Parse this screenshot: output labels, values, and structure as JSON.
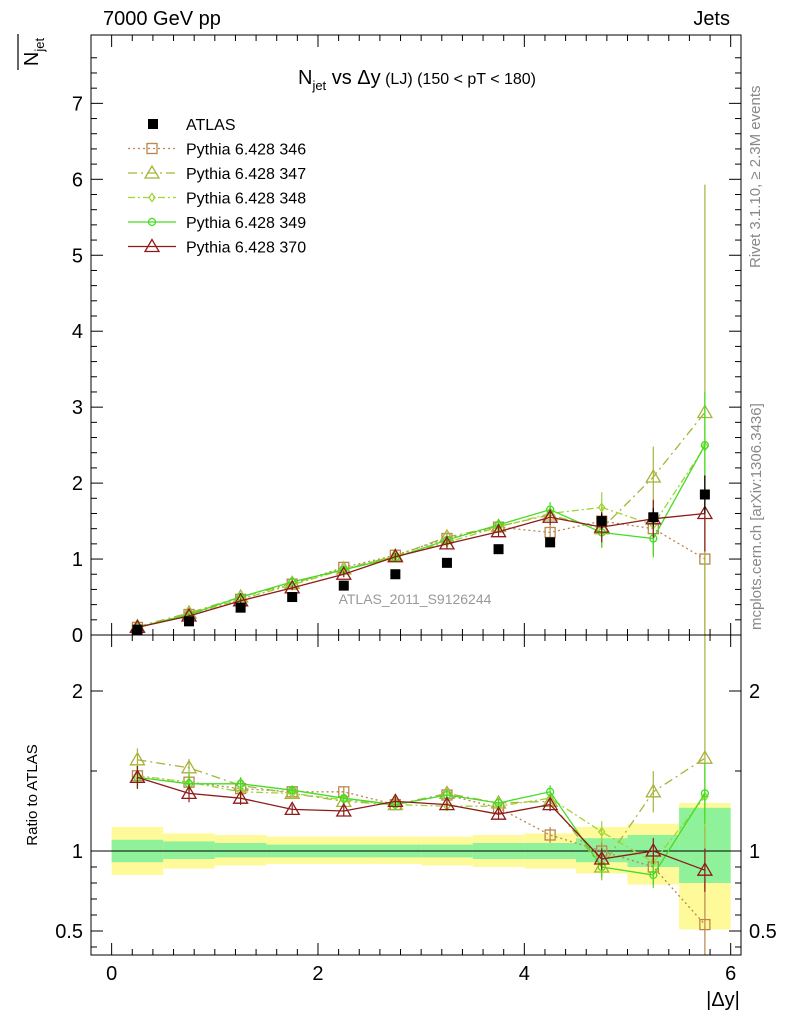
{
  "header": {
    "energy_label": "7000 GeV pp",
    "category_label": "Jets",
    "rivet_label": "Rivet 3.1.10, ≥ 2.3M events",
    "mcplots_label": "mcplots.cern.ch [arXiv:1306.3436]"
  },
  "chart_data": [
    {
      "type": "scatter",
      "title_main": "N",
      "title_sub": "jet",
      "title_rest": " vs Δy",
      "title_small": " (LJ)",
      "title_cut": " (150 < pT < 180)",
      "ylabel_main": "N",
      "ylabel_sub": "jet",
      "watermark": "ATLAS_2011_S9126244",
      "xlim": [
        -0.2,
        6.1
      ],
      "ylim": [
        0,
        7.9
      ],
      "xticks": [
        0,
        2,
        4,
        6
      ],
      "yticks": [
        0,
        1,
        2,
        3,
        4,
        5,
        6,
        7
      ],
      "x": [
        0.25,
        0.75,
        1.25,
        1.75,
        2.25,
        2.75,
        3.25,
        3.75,
        4.25,
        4.75,
        5.25,
        5.75
      ],
      "data": {
        "name": "ATLAS",
        "color": "#000000",
        "values": [
          0.07,
          0.18,
          0.36,
          0.5,
          0.65,
          0.8,
          0.95,
          1.13,
          1.22,
          1.5,
          1.55,
          1.85
        ],
        "errors": [
          0.01,
          0.02,
          0.02,
          0.03,
          0.03,
          0.03,
          0.04,
          0.05,
          0.06,
          0.1,
          0.12,
          0.25
        ]
      },
      "series": [
        {
          "name": "Pythia 6.428 346",
          "color": "#b8864e",
          "dash": "2,3",
          "marker": "square",
          "values": [
            0.1,
            0.27,
            0.47,
            0.67,
            0.89,
            1.05,
            1.27,
            1.42,
            1.35,
            1.5,
            1.4,
            1.0
          ],
          "errors": [
            0.01,
            0.02,
            0.03,
            0.03,
            0.04,
            0.05,
            0.06,
            0.08,
            0.12,
            0.2,
            0.35,
            1.0
          ]
        },
        {
          "name": "Pythia 6.428 347",
          "color": "#a8b33a",
          "dash": "9,4,2,4",
          "marker": "triangle",
          "values": [
            0.11,
            0.29,
            0.5,
            0.68,
            0.87,
            1.04,
            1.29,
            1.43,
            1.58,
            1.4,
            2.08,
            2.93
          ],
          "errors": [
            0.01,
            0.02,
            0.03,
            0.03,
            0.04,
            0.05,
            0.06,
            0.07,
            0.1,
            0.25,
            0.4,
            3.0
          ]
        },
        {
          "name": "Pythia 6.428 348",
          "color": "#9fd436",
          "dash": "7,3,2,3",
          "marker": "diamond",
          "values": [
            0.1,
            0.27,
            0.47,
            0.66,
            0.86,
            1.04,
            1.22,
            1.42,
            1.6,
            1.68,
            1.45,
            2.48
          ],
          "errors": [
            0.01,
            0.02,
            0.03,
            0.03,
            0.04,
            0.05,
            0.06,
            0.07,
            0.1,
            0.2,
            0.3,
            0.7
          ]
        },
        {
          "name": "Pythia 6.428 349",
          "color": "#44dd22",
          "dash": "",
          "marker": "circle",
          "values": [
            0.1,
            0.27,
            0.5,
            0.7,
            0.86,
            1.02,
            1.25,
            1.45,
            1.65,
            1.35,
            1.27,
            2.5
          ],
          "errors": [
            0.01,
            0.02,
            0.03,
            0.03,
            0.04,
            0.05,
            0.06,
            0.07,
            0.1,
            0.2,
            0.25,
            0.7
          ]
        },
        {
          "name": "Pythia 6.428 370",
          "color": "#8e1a1a",
          "dash": "",
          "marker": "triangle",
          "values": [
            0.1,
            0.25,
            0.45,
            0.62,
            0.8,
            1.03,
            1.2,
            1.36,
            1.55,
            1.42,
            1.53,
            1.6
          ],
          "errors": [
            0.01,
            0.02,
            0.03,
            0.03,
            0.04,
            0.05,
            0.06,
            0.07,
            0.1,
            0.2,
            0.25,
            0.5
          ]
        }
      ]
    },
    {
      "type": "scatter",
      "ylabel": "Ratio to ATLAS",
      "xlabel": "|Δy|",
      "xlim": [
        -0.2,
        6.1
      ],
      "ylim": [
        0.35,
        2.35
      ],
      "xticks": [
        0,
        2,
        4,
        6
      ],
      "yticks": [
        0.5,
        1,
        2
      ],
      "reference": 1,
      "x_edges": [
        0,
        0.5,
        1,
        1.5,
        2,
        2.5,
        3,
        3.5,
        4,
        4.5,
        5,
        5.5,
        6
      ],
      "band_inner": {
        "color": "#8ff29a",
        "lower": [
          0.93,
          0.95,
          0.96,
          0.96,
          0.96,
          0.96,
          0.96,
          0.95,
          0.95,
          0.93,
          0.9,
          0.8
        ],
        "upper": [
          1.07,
          1.06,
          1.05,
          1.04,
          1.04,
          1.04,
          1.04,
          1.05,
          1.05,
          1.08,
          1.1,
          1.27
        ]
      },
      "band_outer": {
        "color": "#fffa99",
        "lower": [
          0.85,
          0.89,
          0.91,
          0.92,
          0.92,
          0.92,
          0.91,
          0.9,
          0.89,
          0.86,
          0.79,
          0.51
        ],
        "upper": [
          1.15,
          1.11,
          1.1,
          1.09,
          1.09,
          1.09,
          1.09,
          1.1,
          1.11,
          1.15,
          1.17,
          1.3
        ]
      },
      "series": [
        {
          "name": "Pythia 6.428 346",
          "values": [
            1.47,
            1.43,
            1.39,
            1.37,
            1.37,
            1.29,
            1.35,
            1.27,
            1.1,
            1.0,
            0.9,
            0.54
          ]
        },
        {
          "name": "Pythia 6.428 347",
          "values": [
            1.57,
            1.52,
            1.41,
            1.36,
            1.31,
            1.29,
            1.36,
            1.3,
            1.31,
            0.9,
            1.37,
            1.58
          ]
        },
        {
          "name": "Pythia 6.428 348",
          "values": [
            1.47,
            1.43,
            1.37,
            1.36,
            1.32,
            1.29,
            1.28,
            1.28,
            1.33,
            1.12,
            0.93,
            1.34
          ]
        },
        {
          "name": "Pythia 6.428 349",
          "values": [
            1.46,
            1.42,
            1.42,
            1.38,
            1.33,
            1.29,
            1.35,
            1.3,
            1.37,
            0.9,
            0.85,
            1.36
          ]
        },
        {
          "name": "Pythia 6.428 370",
          "values": [
            1.46,
            1.36,
            1.33,
            1.26,
            1.25,
            1.31,
            1.29,
            1.23,
            1.29,
            0.95,
            1.0,
            0.88
          ]
        }
      ]
    }
  ]
}
